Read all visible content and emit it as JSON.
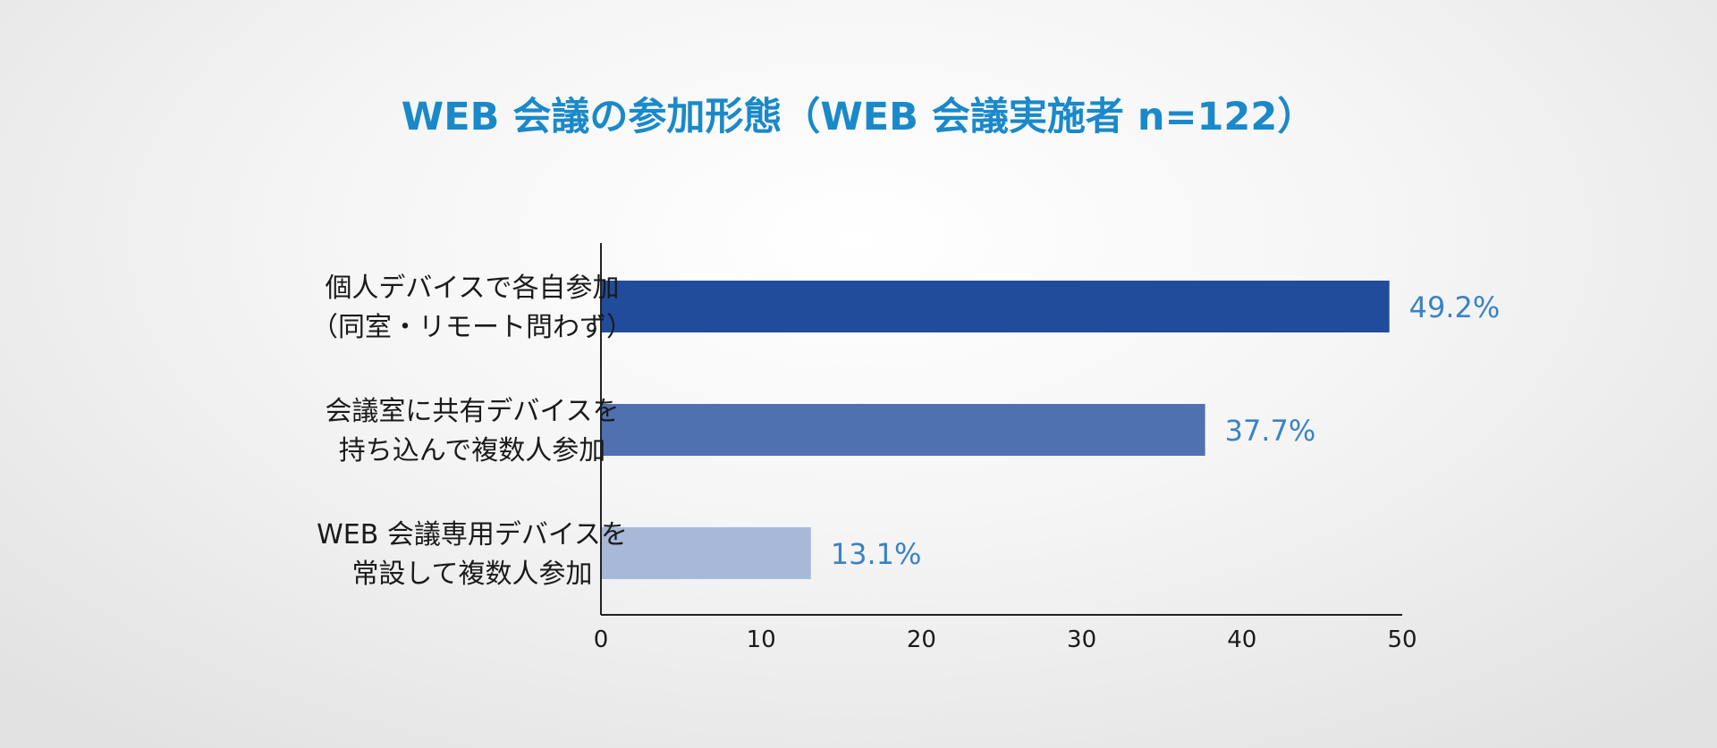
{
  "chart_data": {
    "type": "bar",
    "orientation": "horizontal",
    "title": "WEB 会議の参加形態（WEB 会議実施者 n=122）",
    "categories": [
      [
        "個人デバイスで各自参加",
        "（同室・リモート問わず）"
      ],
      [
        "会議室に共有デバイスを",
        "持ち込んで複数人参加"
      ],
      [
        "WEB 会議専用デバイスを",
        "常設して複数人参加"
      ]
    ],
    "values": [
      49.2,
      37.7,
      13.1
    ],
    "value_labels": [
      "49.2%",
      "37.7%",
      "13.1%"
    ],
    "bar_colors": [
      "#214c9b",
      "#4f71b0",
      "#a7b8d9"
    ],
    "xlim": [
      0,
      50
    ],
    "xticks": [
      0,
      10,
      20,
      30,
      40,
      50
    ],
    "xlabel": "",
    "ylabel": "",
    "grid": false,
    "legend": "none"
  },
  "colors": {
    "title": "#1a89c9",
    "value_label": "#3a82c4",
    "axis": "#222222",
    "text": "#1a1a1a"
  }
}
